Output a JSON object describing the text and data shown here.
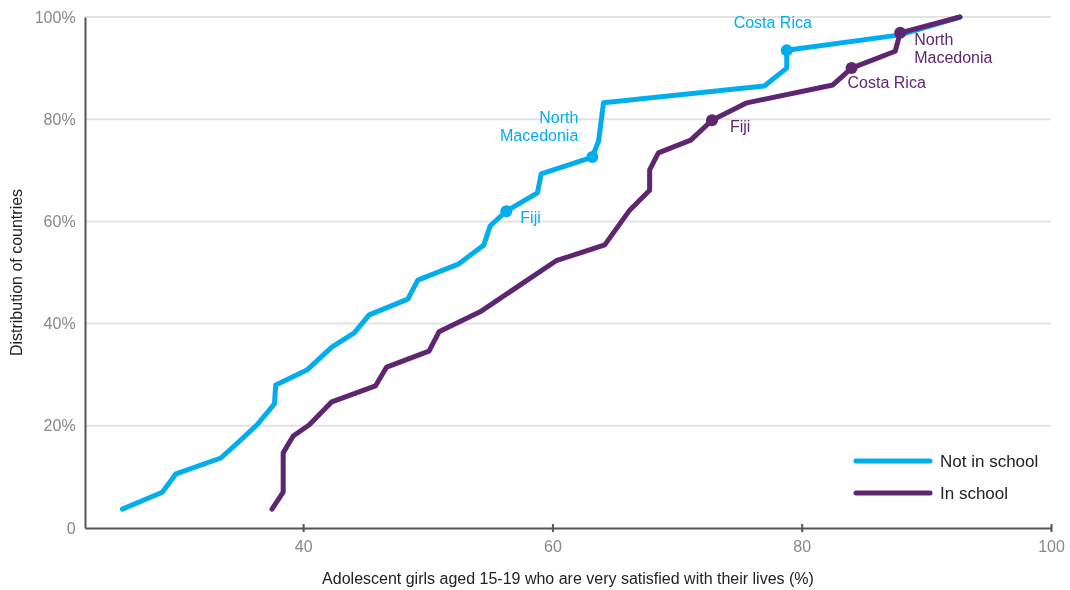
{
  "chart_data": {
    "type": "line",
    "xlabel": "Adolescent girls aged 15-19 who are very satisfied with their lives (%)",
    "ylabel": "Distribution of countries",
    "xlim": [
      22.5,
      100
    ],
    "xticks": [
      40,
      60,
      80,
      100
    ],
    "ylim": [
      0,
      100
    ],
    "yticks": [
      {
        "value": 0,
        "label": "0"
      },
      {
        "value": 20,
        "label": "20%"
      },
      {
        "value": 40,
        "label": "40%"
      },
      {
        "value": 60,
        "label": "60%"
      },
      {
        "value": 80,
        "label": "80%"
      },
      {
        "value": 100,
        "label": "100%"
      }
    ],
    "grid": "y",
    "legend": "bottom right",
    "marker": "none",
    "line_style": "solid",
    "series": [
      {
        "name": "Not in school",
        "color": "#00aeef",
        "x": [
          25.5,
          28.7,
          29.8,
          33.4,
          34.9,
          36.3,
          37.7,
          37.8,
          40.3,
          42.3,
          44.1,
          45.3,
          48.4,
          49.2,
          52.5,
          54.5,
          55.0,
          56.3,
          58.8,
          59.1,
          63.2,
          63.7,
          64.1,
          77.0,
          78.8,
          78.8,
          87.9,
          92.7
        ],
        "values": [
          3.7,
          7.0,
          10.6,
          13.7,
          17.0,
          20.2,
          24.3,
          28.0,
          30.9,
          35.4,
          38.2,
          41.7,
          44.8,
          48.5,
          51.7,
          55.4,
          59.1,
          62.0,
          65.6,
          69.3,
          72.6,
          75.7,
          83.2,
          86.5,
          90.0,
          93.5,
          96.5,
          100
        ]
      },
      {
        "name": "In school",
        "color": "#5e2670",
        "x": [
          37.5,
          38.4,
          38.4,
          39.2,
          40.5,
          42.3,
          45.8,
          46.7,
          50.1,
          50.9,
          54.2,
          60.3,
          64.2,
          66.2,
          67.8,
          67.8,
          68.5,
          71.1,
          72.8,
          75.6,
          82.5,
          84.0,
          87.5,
          87.9,
          92.7
        ],
        "values": [
          3.7,
          7.0,
          14.7,
          18.0,
          20.2,
          24.7,
          27.8,
          31.5,
          34.6,
          38.4,
          42.3,
          52.3,
          55.4,
          62.2,
          66.1,
          70.1,
          73.4,
          75.9,
          79.8,
          83.2,
          86.7,
          90.0,
          93.3,
          96.9,
          100
        ]
      }
    ],
    "annotations": [
      {
        "text": "Fiji",
        "x": 56.3,
        "y": 62.0
      },
      {
        "text": "North\nMacedonia",
        "x": 63.2,
        "y": 72.6
      },
      {
        "text": "Costa Rica",
        "x": 78.8,
        "y": 93.5
      },
      {
        "text": "Fiji",
        "x": 72.8,
        "y": 79.8
      },
      {
        "text": "Costa Rica",
        "x": 84.0,
        "y": 90.0
      },
      {
        "text": "North\nMacedonia",
        "x": 87.9,
        "y": 96.9
      }
    ]
  }
}
